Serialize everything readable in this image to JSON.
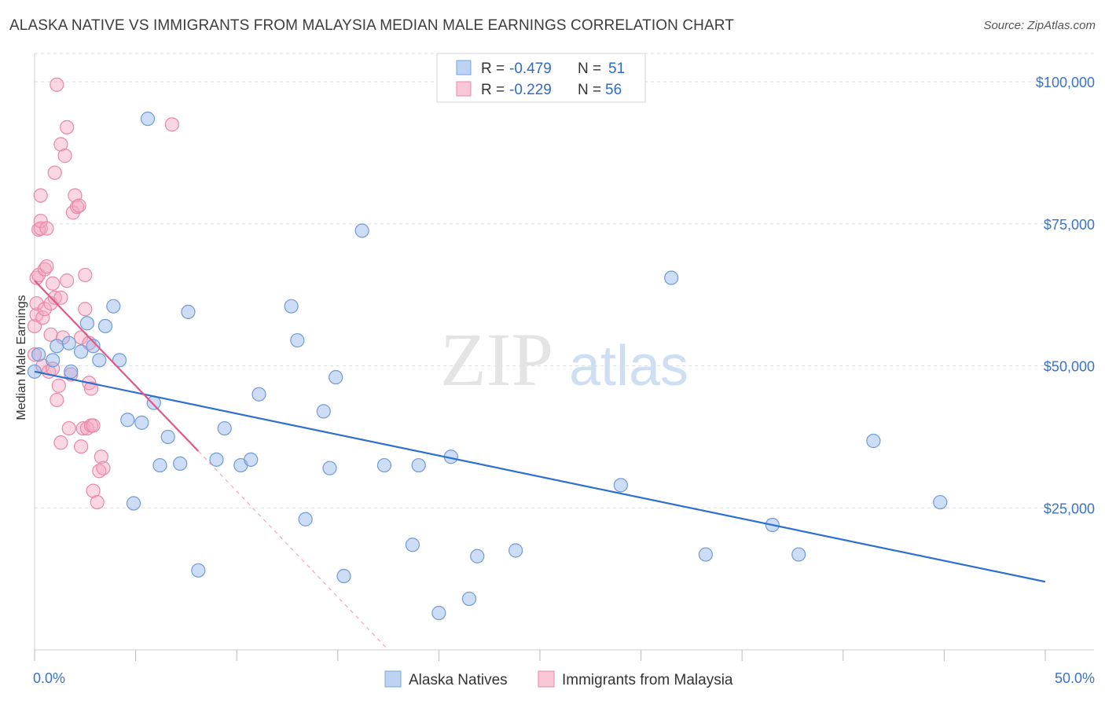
{
  "title": "ALASKA NATIVE VS IMMIGRANTS FROM MALAYSIA MEDIAN MALE EARNINGS CORRELATION CHART",
  "source": "Source: ZipAtlas.com",
  "watermark": {
    "zip": "ZIP",
    "atlas": "atlas"
  },
  "colors": {
    "blue": "#8fb4e8",
    "blue_stroke": "#6f9bd8",
    "blue_line": "#2f6fd0",
    "pink": "#f4a7bf",
    "pink_stroke": "#e888a8",
    "pink_line": "#e0588a",
    "tick_text": "#3b73c4",
    "grid": "#dddddd"
  },
  "legend": {
    "r_label": "R =",
    "n_label": "N =",
    "rows": [
      {
        "r": "-0.479",
        "n": "51",
        "series": "blue"
      },
      {
        "r": "-0.229",
        "n": "56",
        "series": "pink"
      }
    ]
  },
  "chart_data": {
    "type": "scatter",
    "title": "ALASKA NATIVE VS IMMIGRANTS FROM MALAYSIA MEDIAN MALE EARNINGS CORRELATION CHART",
    "xlabel": "",
    "ylabel": "Median Male Earnings",
    "xlim": [
      0,
      50
    ],
    "ylim": [
      0,
      105000
    ],
    "x_tick_labels": {
      "left": "0.0%",
      "right": "50.0%"
    },
    "y_ticks": [
      {
        "value": 25000,
        "label": "$25,000"
      },
      {
        "value": 50000,
        "label": "$50,000"
      },
      {
        "value": 75000,
        "label": "$75,000"
      },
      {
        "value": 100000,
        "label": "$100,000"
      }
    ],
    "series": [
      {
        "name": "Alaska Natives",
        "color": "blue",
        "trend": {
          "x0": 0,
          "y0": 49000,
          "x1": 50,
          "y1": 12000,
          "dashed_until": null
        },
        "points": [
          [
            0.0,
            49000
          ],
          [
            0.2,
            52000
          ],
          [
            0.9,
            51000
          ],
          [
            1.1,
            53500
          ],
          [
            1.7,
            54000
          ],
          [
            1.8,
            49000
          ],
          [
            2.3,
            52500
          ],
          [
            2.6,
            57500
          ],
          [
            2.9,
            53500
          ],
          [
            3.2,
            51000
          ],
          [
            3.5,
            57000
          ],
          [
            3.9,
            60500
          ],
          [
            4.2,
            51000
          ],
          [
            4.6,
            40500
          ],
          [
            4.9,
            25800
          ],
          [
            5.3,
            40000
          ],
          [
            5.6,
            93500
          ],
          [
            5.9,
            43500
          ],
          [
            6.2,
            32500
          ],
          [
            6.6,
            37500
          ],
          [
            7.2,
            32800
          ],
          [
            7.6,
            59500
          ],
          [
            8.1,
            14000
          ],
          [
            9.0,
            33500
          ],
          [
            9.4,
            39000
          ],
          [
            10.2,
            32500
          ],
          [
            10.7,
            33500
          ],
          [
            11.1,
            45000
          ],
          [
            12.7,
            60500
          ],
          [
            13.0,
            54500
          ],
          [
            13.4,
            23000
          ],
          [
            14.3,
            42000
          ],
          [
            14.6,
            32000
          ],
          [
            14.9,
            48000
          ],
          [
            15.3,
            13000
          ],
          [
            16.2,
            73800
          ],
          [
            17.3,
            32500
          ],
          [
            18.7,
            18500
          ],
          [
            19.0,
            32500
          ],
          [
            20.0,
            6500
          ],
          [
            20.6,
            34000
          ],
          [
            21.5,
            9000
          ],
          [
            21.9,
            16500
          ],
          [
            23.8,
            17500
          ],
          [
            29.0,
            29000
          ],
          [
            31.5,
            65500
          ],
          [
            33.2,
            16800
          ],
          [
            36.5,
            22000
          ],
          [
            37.8,
            16800
          ],
          [
            41.5,
            36800
          ],
          [
            44.8,
            26000
          ]
        ]
      },
      {
        "name": "Immigrants from Malaysia",
        "color": "pink",
        "trend": {
          "x0": 0,
          "y0": 65000,
          "x1": 8.1,
          "y1": 35000,
          "dashed_x1": 17.5,
          "dashed_y1": 0
        },
        "points": [
          [
            0.0,
            52000
          ],
          [
            0.0,
            57000
          ],
          [
            0.1,
            59000
          ],
          [
            0.1,
            61000
          ],
          [
            0.1,
            65500
          ],
          [
            0.2,
            66000
          ],
          [
            0.2,
            74000
          ],
          [
            0.3,
            74200
          ],
          [
            0.3,
            75500
          ],
          [
            0.3,
            80000
          ],
          [
            0.4,
            50000
          ],
          [
            0.4,
            58500
          ],
          [
            0.5,
            60000
          ],
          [
            0.5,
            67000
          ],
          [
            0.6,
            67500
          ],
          [
            0.6,
            74200
          ],
          [
            0.7,
            49000
          ],
          [
            0.8,
            55500
          ],
          [
            0.8,
            61000
          ],
          [
            0.9,
            64500
          ],
          [
            1.0,
            62000
          ],
          [
            1.0,
            84000
          ],
          [
            1.1,
            44000
          ],
          [
            1.1,
            99500
          ],
          [
            1.2,
            46500
          ],
          [
            1.3,
            36500
          ],
          [
            1.3,
            89000
          ],
          [
            1.3,
            62000
          ],
          [
            1.4,
            55000
          ],
          [
            1.5,
            87000
          ],
          [
            1.6,
            65000
          ],
          [
            1.6,
            92000
          ],
          [
            1.7,
            39000
          ],
          [
            1.8,
            48500
          ],
          [
            1.9,
            77000
          ],
          [
            2.0,
            80000
          ],
          [
            2.1,
            78000
          ],
          [
            2.2,
            78200
          ],
          [
            2.3,
            35800
          ],
          [
            2.3,
            55000
          ],
          [
            2.4,
            39000
          ],
          [
            2.5,
            60000
          ],
          [
            2.5,
            66000
          ],
          [
            2.6,
            39000
          ],
          [
            2.7,
            47000
          ],
          [
            2.7,
            54000
          ],
          [
            2.8,
            46000
          ],
          [
            2.8,
            39500
          ],
          [
            2.9,
            39500
          ],
          [
            2.9,
            28000
          ],
          [
            3.1,
            26000
          ],
          [
            3.2,
            31500
          ],
          [
            3.3,
            34000
          ],
          [
            3.4,
            32000
          ],
          [
            6.8,
            92500
          ],
          [
            0.9,
            49500
          ]
        ]
      }
    ]
  },
  "bottom_legend": [
    {
      "label": "Alaska Natives",
      "series": "blue"
    },
    {
      "label": "Immigrants from Malaysia",
      "series": "pink"
    }
  ]
}
